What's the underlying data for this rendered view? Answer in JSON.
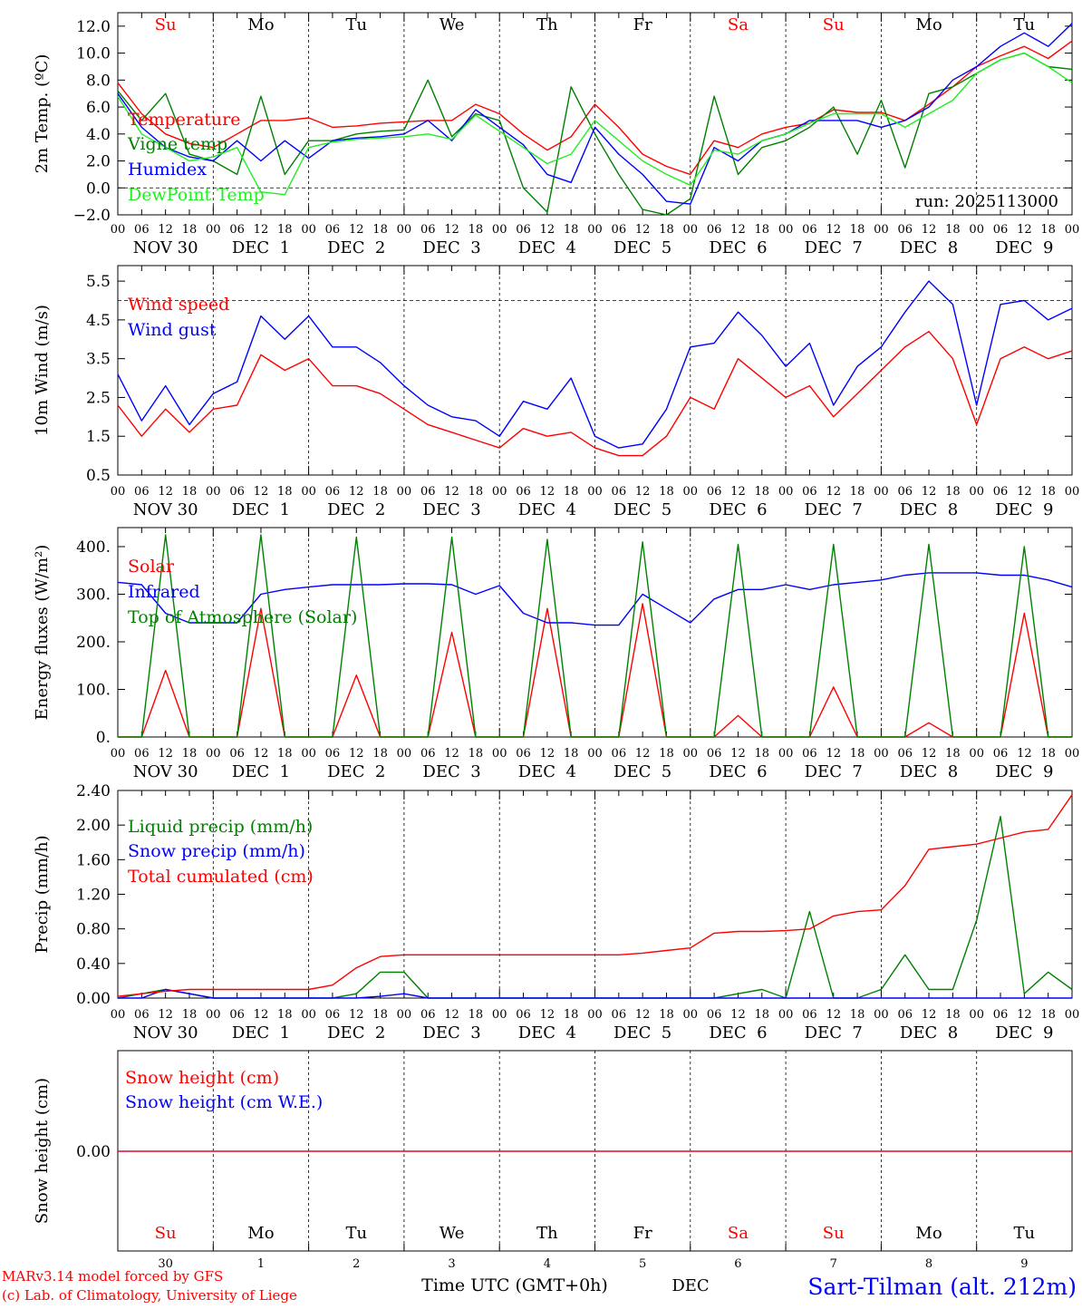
{
  "header": {
    "day_labels": [
      "Su",
      "Mo",
      "Tu",
      "We",
      "Th",
      "Fr",
      "Sa",
      "Su",
      "Mo",
      "Tu"
    ],
    "weekend_flags": [
      true,
      false,
      false,
      false,
      false,
      false,
      true,
      true,
      false,
      false
    ],
    "hour_labels": [
      "00",
      "06",
      "12",
      "18"
    ],
    "date_labels": [
      "NOV 30",
      "DEC  1",
      "DEC  2",
      "DEC  3",
      "DEC  4",
      "DEC  5",
      "DEC  6",
      "DEC  7",
      "DEC  8",
      "DEC  9"
    ],
    "run_label": "run: 2025113000"
  },
  "footer": {
    "model_line": "MARv3.14 model forced by GFS",
    "lab_line": "(c) Lab. of Climatology, University of Liege",
    "time_label": "Time UTC (GMT+0h)",
    "month_label": "DEC",
    "station_label": "Sart-Tilman (alt. 212m)",
    "day_numbers": [
      "30",
      "1",
      "2",
      "3",
      "4",
      "5",
      "6",
      "7",
      "8",
      "9"
    ]
  },
  "colors": {
    "red": "#ff0000",
    "green": "#008000",
    "blue": "#0000ff",
    "lightgreen": "#22ee22",
    "weekend": "#ff0000"
  },
  "chart_data": [
    {
      "type": "line",
      "ylabel": "2m Temp. (ºC)",
      "ylim": [
        -2,
        13
      ],
      "yticks": [
        -2,
        0,
        2,
        4,
        6,
        8,
        10,
        12
      ],
      "ytick_labels": [
        "−2.0",
        "0.0",
        "2.0",
        "4.0",
        "6.0",
        "8.0",
        "10.0",
        "12.0"
      ],
      "dashed_ref": 0,
      "xhours": [
        0,
        6,
        12,
        18,
        24,
        30,
        36,
        42,
        48,
        54,
        60,
        66,
        72,
        78,
        84,
        90,
        96,
        102,
        108,
        114,
        120,
        126,
        132,
        138,
        144,
        150,
        156,
        162,
        168,
        174,
        180,
        186,
        192,
        198,
        204,
        210,
        216,
        222,
        228,
        234,
        240
      ],
      "series": [
        {
          "name": "Temperature",
          "color_key": "red",
          "values": [
            7.8,
            5.5,
            4.0,
            3.3,
            3.0,
            4.0,
            5.0,
            5.0,
            5.2,
            4.5,
            4.6,
            4.8,
            4.9,
            5.0,
            5.0,
            6.2,
            5.5,
            4.0,
            2.8,
            3.8,
            6.2,
            4.5,
            2.5,
            1.6,
            1.0,
            3.5,
            3.0,
            4.0,
            4.5,
            4.8,
            5.8,
            5.6,
            5.6,
            5.0,
            6.2,
            7.5,
            9.0,
            9.8,
            10.5,
            9.6,
            10.9
          ]
        },
        {
          "name": "Vigne temp",
          "color_key": "green",
          "values": [
            7.2,
            5.0,
            7.0,
            2.5,
            2.0,
            1.0,
            6.8,
            1.0,
            3.5,
            3.5,
            4.0,
            4.2,
            4.3,
            8.0,
            3.8,
            5.5,
            5.0,
            0.0,
            -1.8,
            7.5,
            4.0,
            1.0,
            -1.6,
            -2.0,
            -0.8,
            6.8,
            1.0,
            3.0,
            3.5,
            4.5,
            6.0,
            2.5,
            6.5,
            1.5,
            7.0,
            7.5,
            8.5,
            9.5,
            10.0,
            9.0,
            8.8
          ]
        },
        {
          "name": "Humidex",
          "color_key": "blue",
          "values": [
            7.0,
            4.5,
            3.0,
            2.3,
            2.0,
            3.5,
            2.0,
            3.5,
            2.2,
            3.5,
            3.7,
            3.8,
            4.0,
            5.0,
            3.5,
            5.8,
            4.5,
            3.2,
            1.0,
            0.4,
            4.5,
            2.5,
            1.0,
            -1.0,
            -1.2,
            3.0,
            2.0,
            3.5,
            4.0,
            5.0,
            5.0,
            5.0,
            4.5,
            5.0,
            6.0,
            8.0,
            9.0,
            10.5,
            11.5,
            10.5,
            12.2
          ]
        },
        {
          "name": "DewPoint Temp",
          "color_key": "lightgreen",
          "values": [
            6.8,
            4.0,
            3.0,
            2.0,
            2.3,
            3.0,
            -0.3,
            -0.5,
            3.0,
            3.4,
            3.6,
            3.7,
            3.8,
            4.0,
            3.6,
            5.4,
            4.2,
            3.0,
            1.8,
            2.5,
            5.0,
            3.5,
            2.0,
            1.0,
            0.2,
            2.8,
            2.5,
            3.5,
            4.0,
            4.8,
            5.5,
            5.5,
            5.5,
            4.5,
            5.5,
            6.5,
            8.5,
            9.5,
            10.0,
            9.0,
            7.8
          ]
        }
      ],
      "legend_position": "upper-left"
    },
    {
      "type": "line",
      "ylabel": "10m Wind (m/s)",
      "ylim": [
        0.5,
        5.9
      ],
      "yticks": [
        0.5,
        1.5,
        2.5,
        3.5,
        4.5,
        5.5
      ],
      "ytick_labels": [
        "0.5",
        "1.5",
        "2.5",
        "3.5",
        "4.5",
        "5.5"
      ],
      "dashed_ref": 5.0,
      "xhours": [
        0,
        6,
        12,
        18,
        24,
        30,
        36,
        42,
        48,
        54,
        60,
        66,
        72,
        78,
        84,
        90,
        96,
        102,
        108,
        114,
        120,
        126,
        132,
        138,
        144,
        150,
        156,
        162,
        168,
        174,
        180,
        186,
        192,
        198,
        204,
        210,
        216,
        222,
        228,
        234,
        240
      ],
      "series": [
        {
          "name": "Wind speed",
          "color_key": "red",
          "values": [
            2.3,
            1.5,
            2.2,
            1.6,
            2.2,
            2.3,
            3.6,
            3.2,
            3.5,
            2.8,
            2.8,
            2.6,
            2.2,
            1.8,
            1.6,
            1.4,
            1.2,
            1.7,
            1.5,
            1.6,
            1.2,
            1.0,
            1.0,
            1.5,
            2.5,
            2.2,
            3.5,
            3.0,
            2.5,
            2.8,
            2.0,
            2.6,
            3.2,
            3.8,
            4.2,
            3.5,
            1.8,
            3.5,
            3.8,
            3.5,
            3.7
          ]
        },
        {
          "name": "Wind gust",
          "color_key": "blue",
          "values": [
            3.1,
            1.9,
            2.8,
            1.8,
            2.6,
            2.9,
            4.6,
            4.0,
            4.6,
            3.8,
            3.8,
            3.4,
            2.8,
            2.3,
            2.0,
            1.9,
            1.5,
            2.4,
            2.2,
            3.0,
            1.5,
            1.2,
            1.3,
            2.2,
            3.8,
            3.9,
            4.7,
            4.1,
            3.3,
            3.9,
            2.3,
            3.3,
            3.8,
            4.7,
            5.5,
            4.9,
            2.3,
            4.9,
            5.0,
            4.5,
            4.8
          ]
        }
      ],
      "legend_position": "upper-left"
    },
    {
      "type": "line",
      "ylabel": "Energy fluxes (W/m²)",
      "ylim": [
        0,
        440
      ],
      "yticks": [
        0,
        100,
        200,
        300,
        400
      ],
      "ytick_labels": [
        "0.",
        "100.",
        "200.",
        "300.",
        "400."
      ],
      "xhours": [
        0,
        6,
        12,
        18,
        24,
        30,
        36,
        42,
        48,
        54,
        60,
        66,
        72,
        78,
        84,
        90,
        96,
        102,
        108,
        114,
        120,
        126,
        132,
        138,
        144,
        150,
        156,
        162,
        168,
        174,
        180,
        186,
        192,
        198,
        204,
        210,
        216,
        222,
        228,
        234,
        240
      ],
      "series": [
        {
          "name": "Solar",
          "color_key": "red",
          "values": [
            0,
            0,
            140,
            0,
            0,
            0,
            270,
            0,
            0,
            0,
            130,
            0,
            0,
            0,
            220,
            0,
            0,
            0,
            270,
            0,
            0,
            0,
            280,
            0,
            0,
            0,
            45,
            0,
            0,
            0,
            105,
            0,
            0,
            0,
            30,
            0,
            0,
            0,
            260,
            0,
            0
          ]
        },
        {
          "name": "Infrared",
          "color_key": "blue",
          "values": [
            325,
            320,
            260,
            240,
            240,
            240,
            300,
            310,
            315,
            320,
            320,
            320,
            322,
            322,
            320,
            300,
            318,
            260,
            240,
            240,
            235,
            235,
            300,
            270,
            240,
            290,
            310,
            310,
            320,
            310,
            320,
            325,
            330,
            340,
            345,
            345,
            345,
            340,
            340,
            330,
            315
          ]
        },
        {
          "name": "Top of Atmosphere (Solar)",
          "color_key": "green",
          "values": [
            0,
            0,
            425,
            0,
            0,
            0,
            425,
            0,
            0,
            0,
            420,
            0,
            0,
            0,
            420,
            0,
            0,
            0,
            415,
            0,
            0,
            0,
            410,
            0,
            0,
            0,
            405,
            0,
            0,
            0,
            405,
            0,
            0,
            0,
            405,
            0,
            0,
            0,
            400,
            0,
            0
          ]
        }
      ],
      "legend_position": "upper-left"
    },
    {
      "type": "line",
      "ylabel": "Precip (mm/h)",
      "ylim": [
        0,
        2.4
      ],
      "yticks": [
        0,
        0.4,
        0.8,
        1.2,
        1.6,
        2.0,
        2.4
      ],
      "ytick_labels": [
        "0.00",
        "0.40",
        "0.80",
        "1.20",
        "1.60",
        "2.00",
        "2.40"
      ],
      "xhours": [
        0,
        6,
        12,
        18,
        24,
        30,
        36,
        42,
        48,
        54,
        60,
        66,
        72,
        78,
        84,
        90,
        96,
        102,
        108,
        114,
        120,
        126,
        132,
        138,
        144,
        150,
        156,
        162,
        168,
        174,
        180,
        186,
        192,
        198,
        204,
        210,
        216,
        222,
        228,
        234,
        240
      ],
      "series": [
        {
          "name": "Liquid precip (mm/h)",
          "color_key": "green",
          "values": [
            0,
            0.05,
            0.1,
            0.05,
            0,
            0,
            0,
            0,
            0,
            0,
            0.05,
            0.3,
            0.3,
            0,
            0,
            0,
            0,
            0,
            0,
            0,
            0,
            0,
            0,
            0,
            0,
            0,
            0.05,
            0.1,
            0,
            1.0,
            0,
            0,
            0.1,
            0.5,
            0.1,
            0.1,
            0.9,
            2.1,
            0.05,
            0.3,
            0.1
          ]
        },
        {
          "name": "Snow precip (mm/h)",
          "color_key": "blue",
          "values": [
            0,
            0,
            0.1,
            0.05,
            0,
            0,
            0,
            0,
            0,
            0,
            0,
            0.02,
            0.05,
            0,
            0,
            0,
            0,
            0,
            0,
            0,
            0,
            0,
            0,
            0,
            0,
            0,
            0,
            0,
            0,
            0,
            0,
            0,
            0,
            0,
            0,
            0,
            0,
            0,
            0,
            0,
            0
          ]
        },
        {
          "name": "Total cumulated (cm)",
          "color_key": "red",
          "values": [
            0.02,
            0.05,
            0.08,
            0.1,
            0.1,
            0.1,
            0.1,
            0.1,
            0.1,
            0.15,
            0.35,
            0.48,
            0.5,
            0.5,
            0.5,
            0.5,
            0.5,
            0.5,
            0.5,
            0.5,
            0.5,
            0.5,
            0.52,
            0.55,
            0.58,
            0.75,
            0.77,
            0.77,
            0.78,
            0.8,
            0.95,
            1.0,
            1.02,
            1.3,
            1.72,
            1.75,
            1.78,
            1.85,
            1.92,
            1.95,
            2.35
          ]
        }
      ],
      "legend_position": "upper-left"
    },
    {
      "type": "line",
      "ylabel": "Snow height (cm)",
      "ytick_labels": [
        "0.00"
      ],
      "series": [
        {
          "name": "Snow height (cm)",
          "color_key": "red",
          "values": [
            0,
            0
          ]
        },
        {
          "name": "Snow height (cm W.E.)",
          "color_key": "blue",
          "values": [
            0,
            0
          ]
        }
      ],
      "legend_position": "upper-left"
    }
  ]
}
